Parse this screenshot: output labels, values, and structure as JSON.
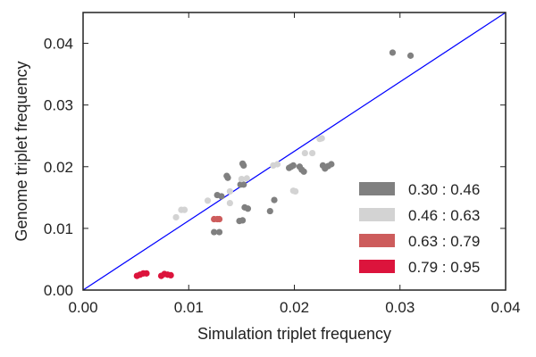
{
  "chart_data": {
    "type": "scatter",
    "title": "",
    "xlabel": "Simulation triplet frequency",
    "ylabel": "Genome triplet frequency",
    "xlim": [
      0.0,
      0.04
    ],
    "ylim": [
      0.0,
      0.045
    ],
    "xticks": [
      0.0,
      0.01,
      0.02,
      0.03,
      0.04
    ],
    "xtick_labels": [
      "0.00",
      "0.01",
      "0.02",
      "0.03",
      "0.04"
    ],
    "yticks": [
      0.0,
      0.01,
      0.02,
      0.03,
      0.04
    ],
    "ytick_labels": [
      "0.00",
      "0.01",
      "0.02",
      "0.03",
      "0.04"
    ],
    "grid": false,
    "legend_position": "bottom-right",
    "reference_line": {
      "from": [
        0.0,
        0.0
      ],
      "to": [
        0.04,
        0.045
      ],
      "color": "#0000ff"
    },
    "series": [
      {
        "name": "0.30 : 0.46",
        "color": "#808080",
        "points": [
          [
            0.0293,
            0.0385
          ],
          [
            0.031,
            0.038
          ],
          [
            0.0151,
            0.0205
          ],
          [
            0.0152,
            0.0202
          ],
          [
            0.0136,
            0.0185
          ],
          [
            0.0137,
            0.0182
          ],
          [
            0.0149,
            0.0171
          ],
          [
            0.0152,
            0.0171
          ],
          [
            0.0127,
            0.0154
          ],
          [
            0.0131,
            0.0152
          ],
          [
            0.0153,
            0.0134
          ],
          [
            0.0156,
            0.0132
          ],
          [
            0.0148,
            0.0112
          ],
          [
            0.0151,
            0.0113
          ],
          [
            0.0124,
            0.0094
          ],
          [
            0.0129,
            0.0094
          ],
          [
            0.0177,
            0.0128
          ],
          [
            0.0181,
            0.0146
          ],
          [
            0.0195,
            0.0198
          ],
          [
            0.0197,
            0.02
          ],
          [
            0.0199,
            0.0202
          ],
          [
            0.0205,
            0.02
          ],
          [
            0.0207,
            0.0195
          ],
          [
            0.0209,
            0.0192
          ],
          [
            0.0227,
            0.0202
          ],
          [
            0.0229,
            0.0197
          ],
          [
            0.0232,
            0.0201
          ],
          [
            0.0235,
            0.0204
          ]
        ]
      },
      {
        "name": "0.46 : 0.63",
        "color": "#d3d3d3",
        "points": [
          [
            0.0088,
            0.0118
          ],
          [
            0.0093,
            0.013
          ],
          [
            0.0096,
            0.013
          ],
          [
            0.0118,
            0.0145
          ],
          [
            0.0139,
            0.0141
          ],
          [
            0.0139,
            0.016
          ],
          [
            0.015,
            0.018
          ],
          [
            0.0155,
            0.0181
          ],
          [
            0.018,
            0.0202
          ],
          [
            0.0184,
            0.0204
          ],
          [
            0.0199,
            0.0161
          ],
          [
            0.0201,
            0.016
          ],
          [
            0.021,
            0.0222
          ],
          [
            0.0217,
            0.0222
          ],
          [
            0.0224,
            0.0245
          ],
          [
            0.0226,
            0.0246
          ]
        ]
      },
      {
        "name": "0.63 : 0.79",
        "color": "#cd5c5c",
        "points": [
          [
            0.0124,
            0.0115
          ],
          [
            0.0127,
            0.0115
          ],
          [
            0.0129,
            0.0115
          ]
        ]
      },
      {
        "name": "0.79 : 0.95",
        "color": "#dc143c",
        "points": [
          [
            0.0051,
            0.0023
          ],
          [
            0.0054,
            0.0025
          ],
          [
            0.0057,
            0.0027
          ],
          [
            0.006,
            0.0027
          ],
          [
            0.0074,
            0.0023
          ],
          [
            0.0077,
            0.0026
          ],
          [
            0.008,
            0.0025
          ],
          [
            0.0083,
            0.0024
          ]
        ]
      }
    ]
  }
}
